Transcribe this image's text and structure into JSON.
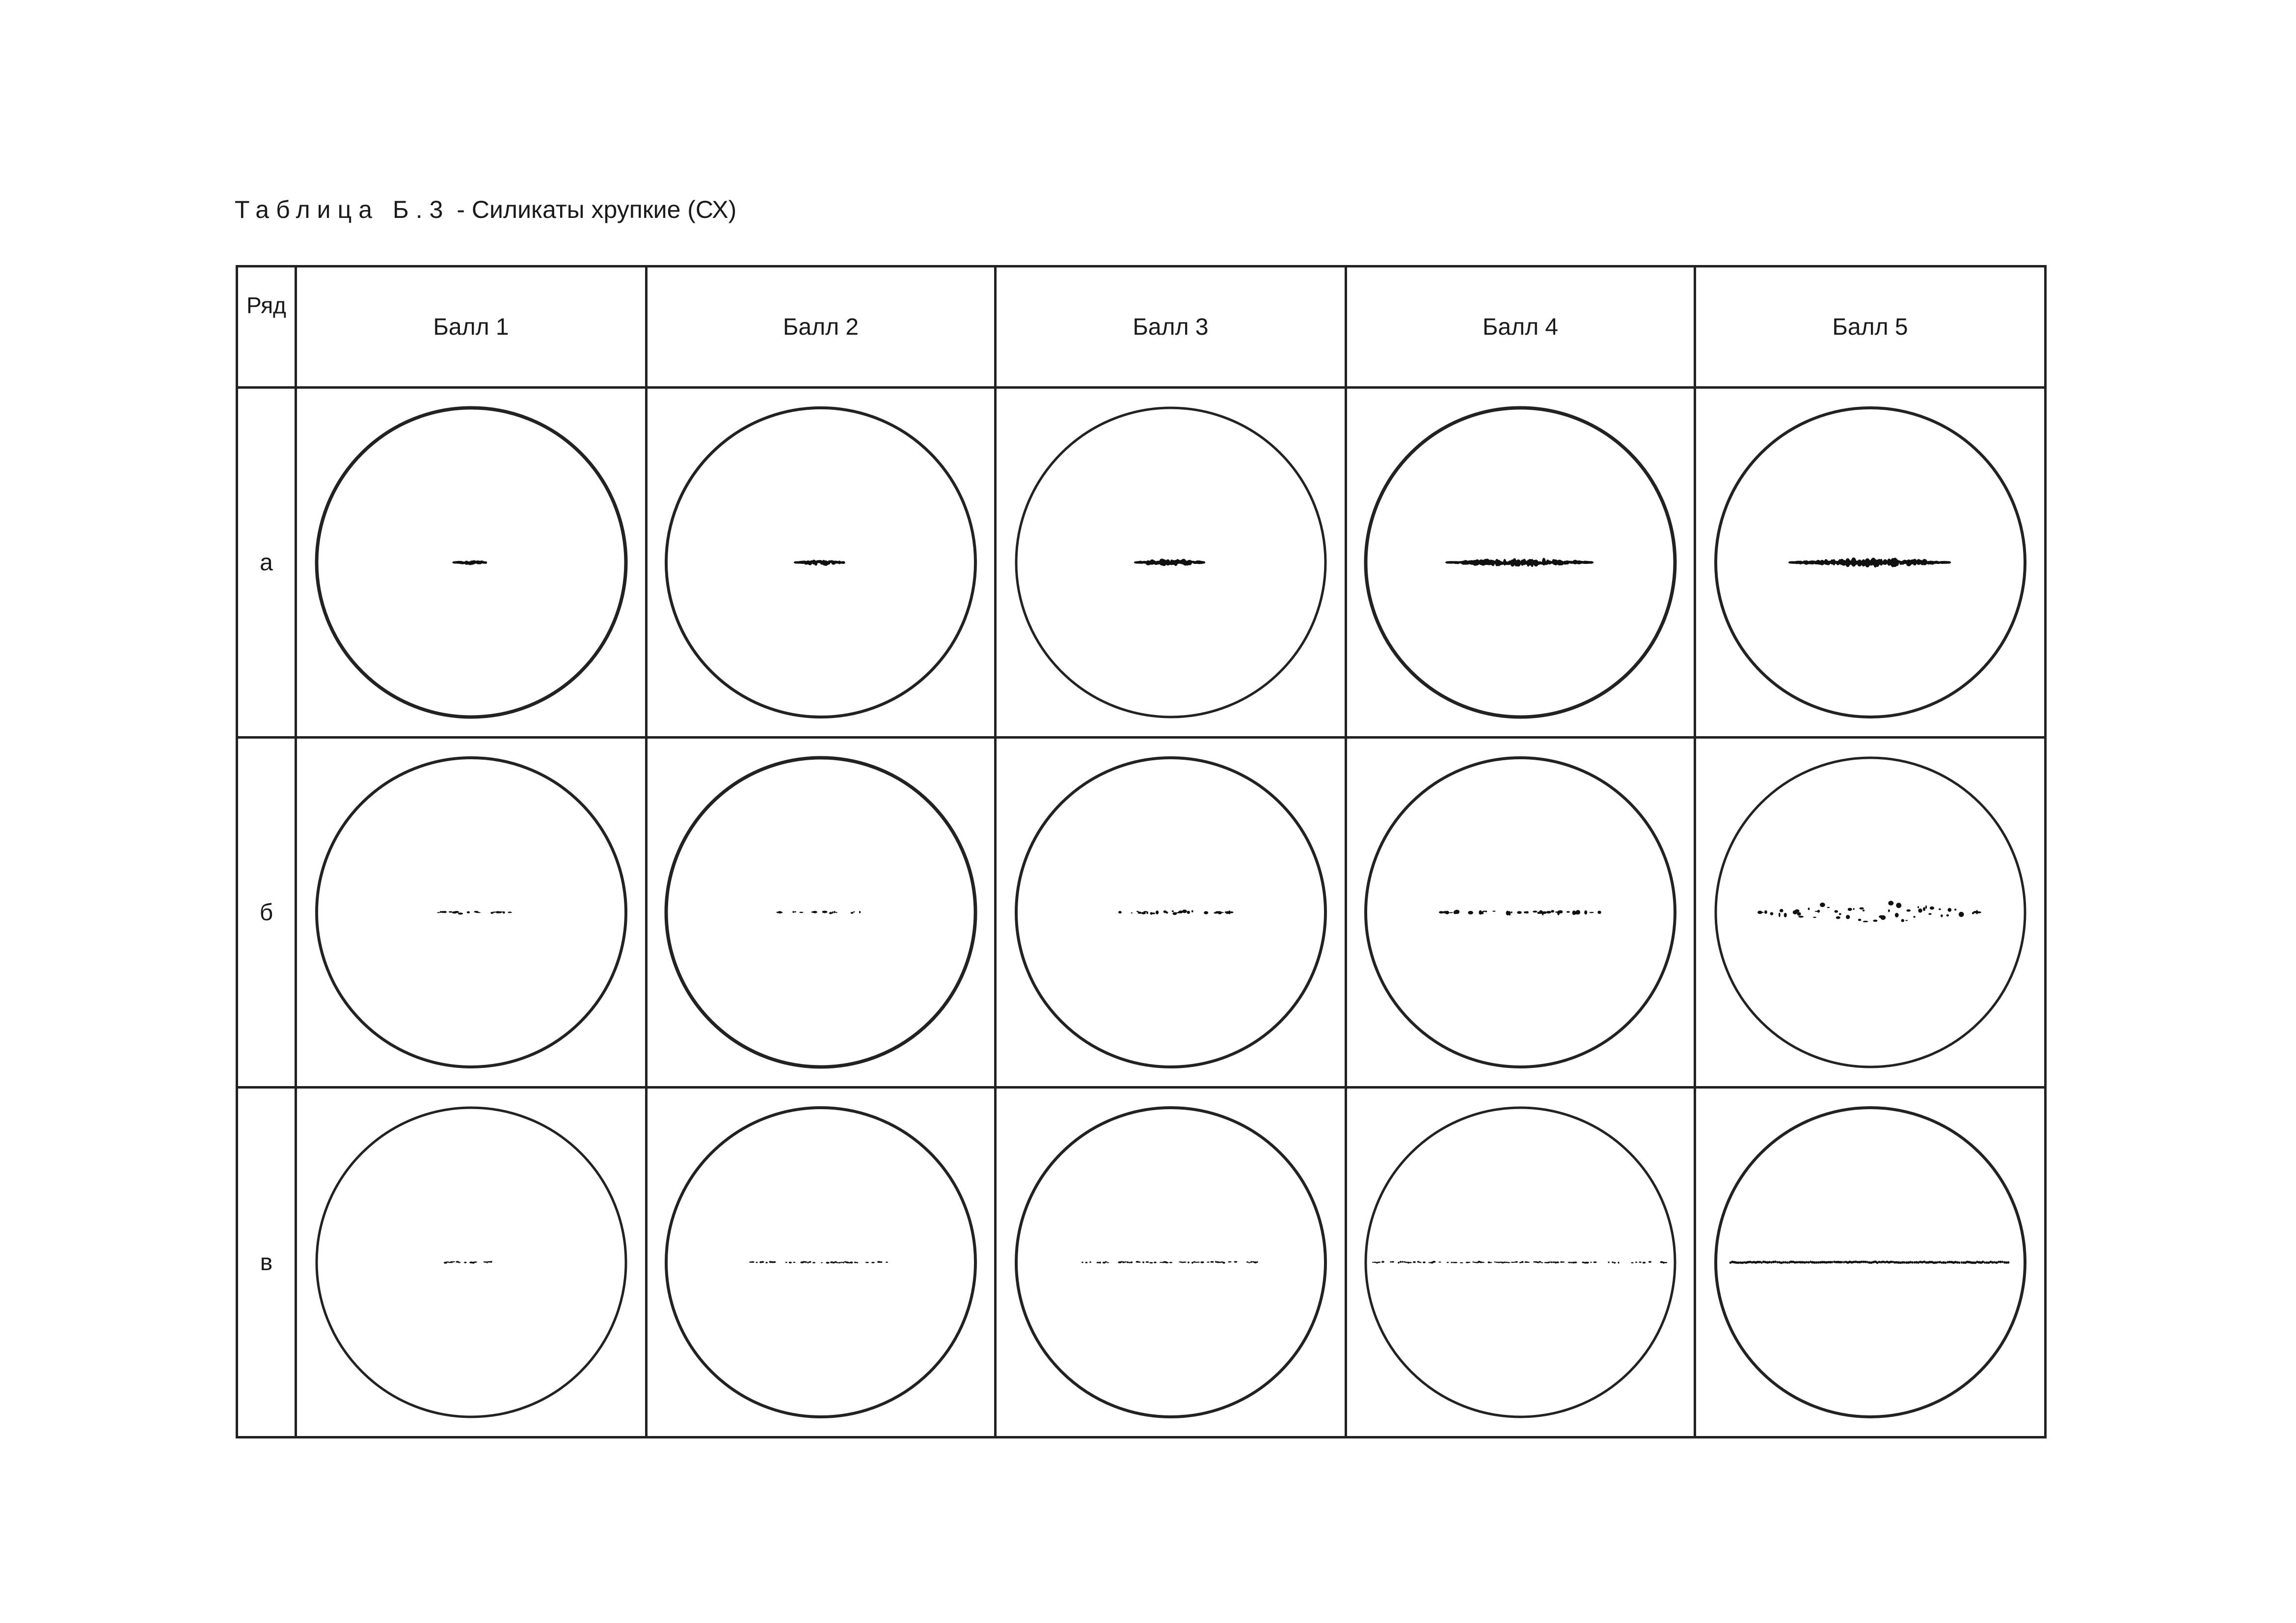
{
  "title": {
    "prefix": "Таблица Б.3",
    "text": " - Силикаты хрупкие (СХ)"
  },
  "table": {
    "corner_header": "Ряд",
    "columns": [
      "Балл 1",
      "Балл 2",
      "Балл 3",
      "Балл 4",
      "Балл 5"
    ],
    "rows": [
      {
        "label": "а"
      },
      {
        "label": "б"
      },
      {
        "label": "в"
      }
    ]
  }
}
